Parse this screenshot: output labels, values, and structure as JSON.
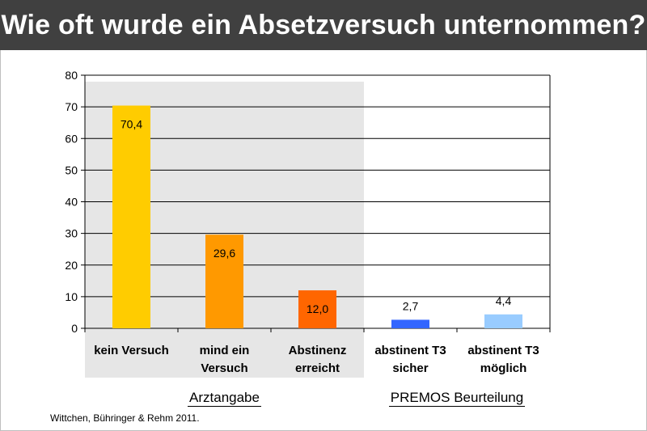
{
  "title": "Wie oft wurde ein Absetzversuch unternommen?",
  "chart_data": {
    "type": "bar",
    "categories": [
      [
        "kein Versuch"
      ],
      [
        "mind ein",
        "Versuch"
      ],
      [
        "Abstinenz",
        "erreicht"
      ],
      [
        "abstinent T3",
        "sicher"
      ],
      [
        "abstinent T3",
        "möglich"
      ]
    ],
    "values": [
      70.4,
      29.6,
      12.0,
      2.7,
      4.4
    ],
    "data_labels": [
      "70,4",
      "29,6",
      "12,0",
      "2,7",
      "4,4"
    ],
    "bar_colors": [
      "#FFCC00",
      "#FF9900",
      "#FF6600",
      "#3366FF",
      "#99CCFF"
    ],
    "ylim": [
      0,
      80
    ],
    "yticks": [
      0,
      10,
      20,
      30,
      40,
      50,
      60,
      70,
      80
    ],
    "grid": true,
    "groups": [
      {
        "label": "Arztangabe",
        "categories": [
          0,
          1,
          2
        ],
        "shaded": true,
        "shade_color": "#E6E6E6"
      },
      {
        "label": "PREMOS Beurteilung",
        "categories": [
          3,
          4
        ],
        "shaded": false
      }
    ]
  },
  "citation": "Wittchen, Bühringer & Rehm 2011."
}
